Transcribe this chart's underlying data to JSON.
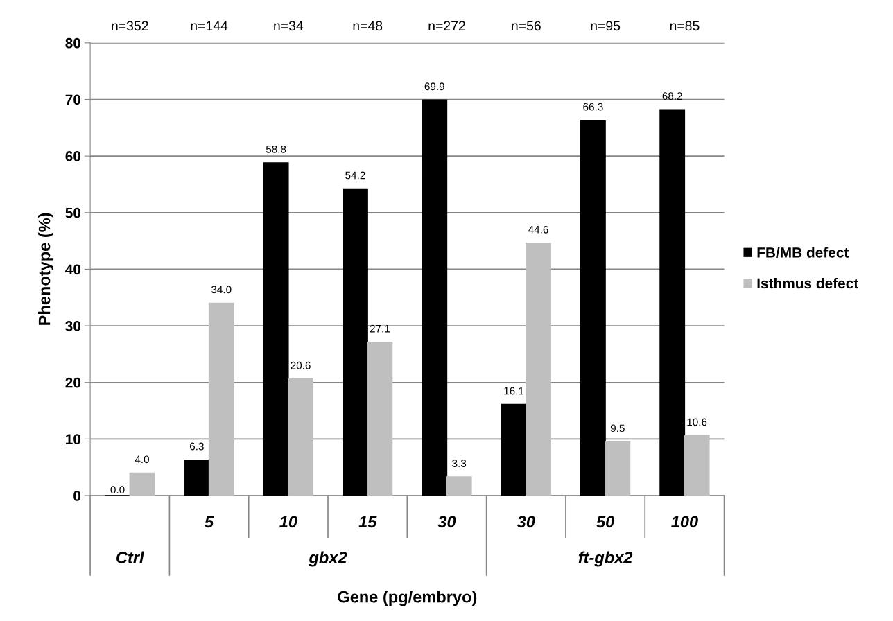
{
  "chart_data": {
    "type": "bar",
    "xlabel": "Gene (pg/embryo)",
    "ylabel": "Phenotype (%)",
    "categories": [
      null,
      "5",
      "10",
      "15",
      "30",
      "30",
      "50",
      "100"
    ],
    "series": [
      {
        "name": "FB/MB defect",
        "color": "#000000",
        "values": [
          0.0,
          6.3,
          58.8,
          54.2,
          69.9,
          16.1,
          66.3,
          68.2
        ],
        "value_labels": [
          "0.0",
          "6.3",
          "58.8",
          "54.2",
          "69.9",
          "16.1",
          "66.3",
          "68.2"
        ]
      },
      {
        "name": "Isthmus defect",
        "color": "#bfbfbf",
        "values": [
          4.0,
          34.0,
          20.6,
          27.1,
          3.3,
          44.6,
          9.5,
          10.6
        ],
        "value_labels": [
          "4.0",
          "34.0",
          "20.6",
          "27.1",
          "3.3",
          "44.6",
          "9.5",
          "10.6"
        ]
      }
    ],
    "annotations": [
      "n=352",
      "n=144",
      "n=34",
      "n=48",
      "n=272",
      "n=56",
      "n=95",
      "n=85",
      "Ctrl",
      "gbx2",
      "ft-gbx2"
    ],
    "ylim": [
      0,
      80
    ],
    "yticks": [
      0,
      10,
      20,
      30,
      40,
      50,
      60,
      70,
      80
    ],
    "grid": "y",
    "legend": "right"
  }
}
